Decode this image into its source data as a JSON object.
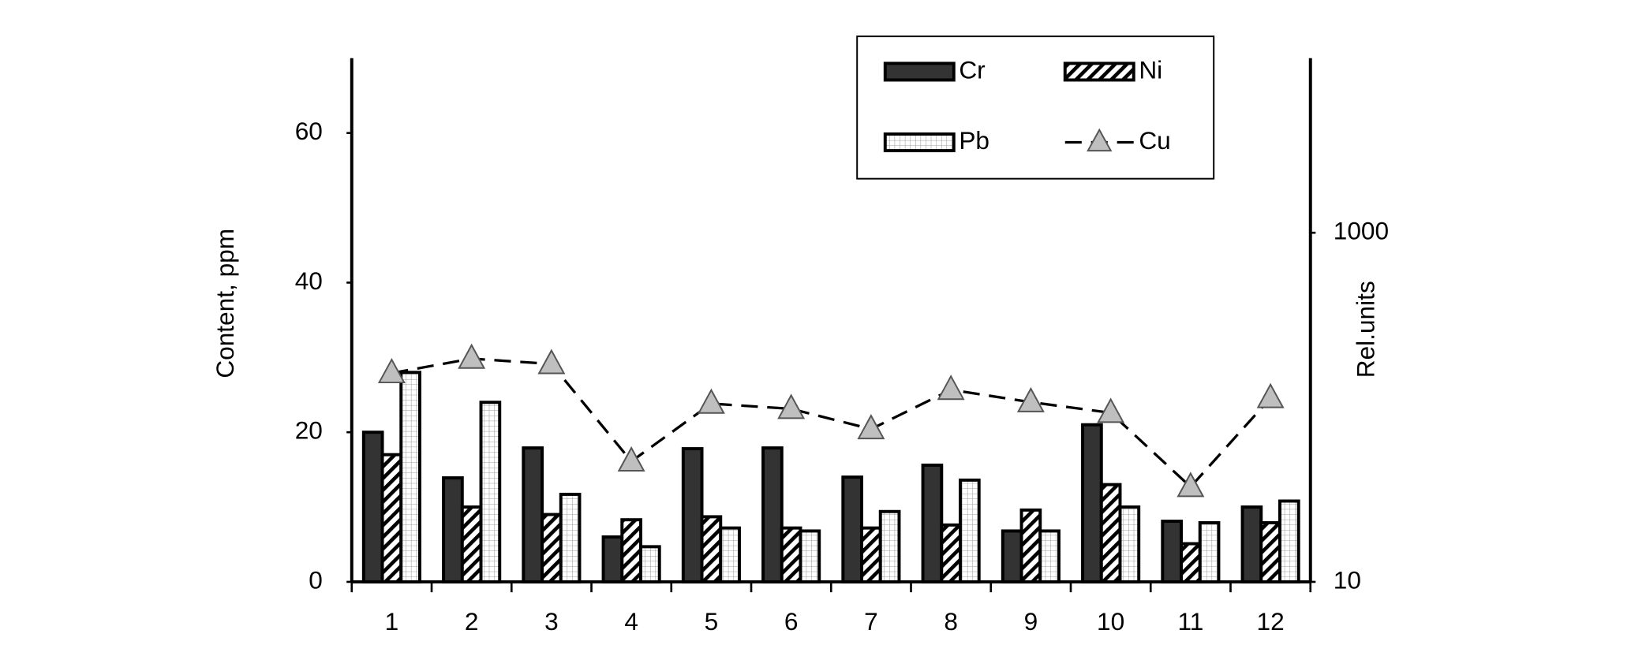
{
  "chart_data": {
    "type": "bar",
    "categories": [
      "1",
      "2",
      "3",
      "4",
      "5",
      "6",
      "7",
      "8",
      "9",
      "10",
      "11",
      "12"
    ],
    "y_label": "Content, ppm",
    "y2_label": "Rel.units",
    "ylim": [
      0,
      70
    ],
    "yticks": [
      0,
      20,
      40,
      60
    ],
    "y2lim": [
      10,
      10000
    ],
    "y2ticks": [
      10,
      1000
    ],
    "y2_scale": "log",
    "grid": false,
    "legend": "top-right",
    "series": [
      {
        "name": "Cr",
        "type": "bar",
        "color": "#333333",
        "pattern": "solid",
        "values": [
          20,
          13.9,
          17.9,
          6,
          17.8,
          17.9,
          14,
          15.6,
          6.8,
          21,
          8.1,
          10
        ]
      },
      {
        "name": "Ni",
        "type": "bar",
        "color": "#ffffff",
        "pattern": "diagonal",
        "values": [
          17,
          10,
          9,
          8.3,
          8.7,
          7.2,
          7.2,
          7.6,
          9.6,
          13,
          5.1,
          7.9
        ]
      },
      {
        "name": "Pb",
        "type": "bar",
        "color": "#ffffff",
        "pattern": "grid",
        "values": [
          28,
          24,
          11.7,
          4.7,
          7.2,
          6.8,
          9.4,
          13.6,
          6.8,
          10,
          7.9,
          10.8
        ]
      },
      {
        "name": "Cu",
        "type": "line",
        "axis": "y2",
        "color": "#bfbfbf",
        "line_style": "dashed",
        "marker": "triangle",
        "values": [
          157,
          190,
          177,
          49,
          105,
          98,
          75,
          126,
          107,
          93,
          35,
          113
        ]
      }
    ]
  }
}
